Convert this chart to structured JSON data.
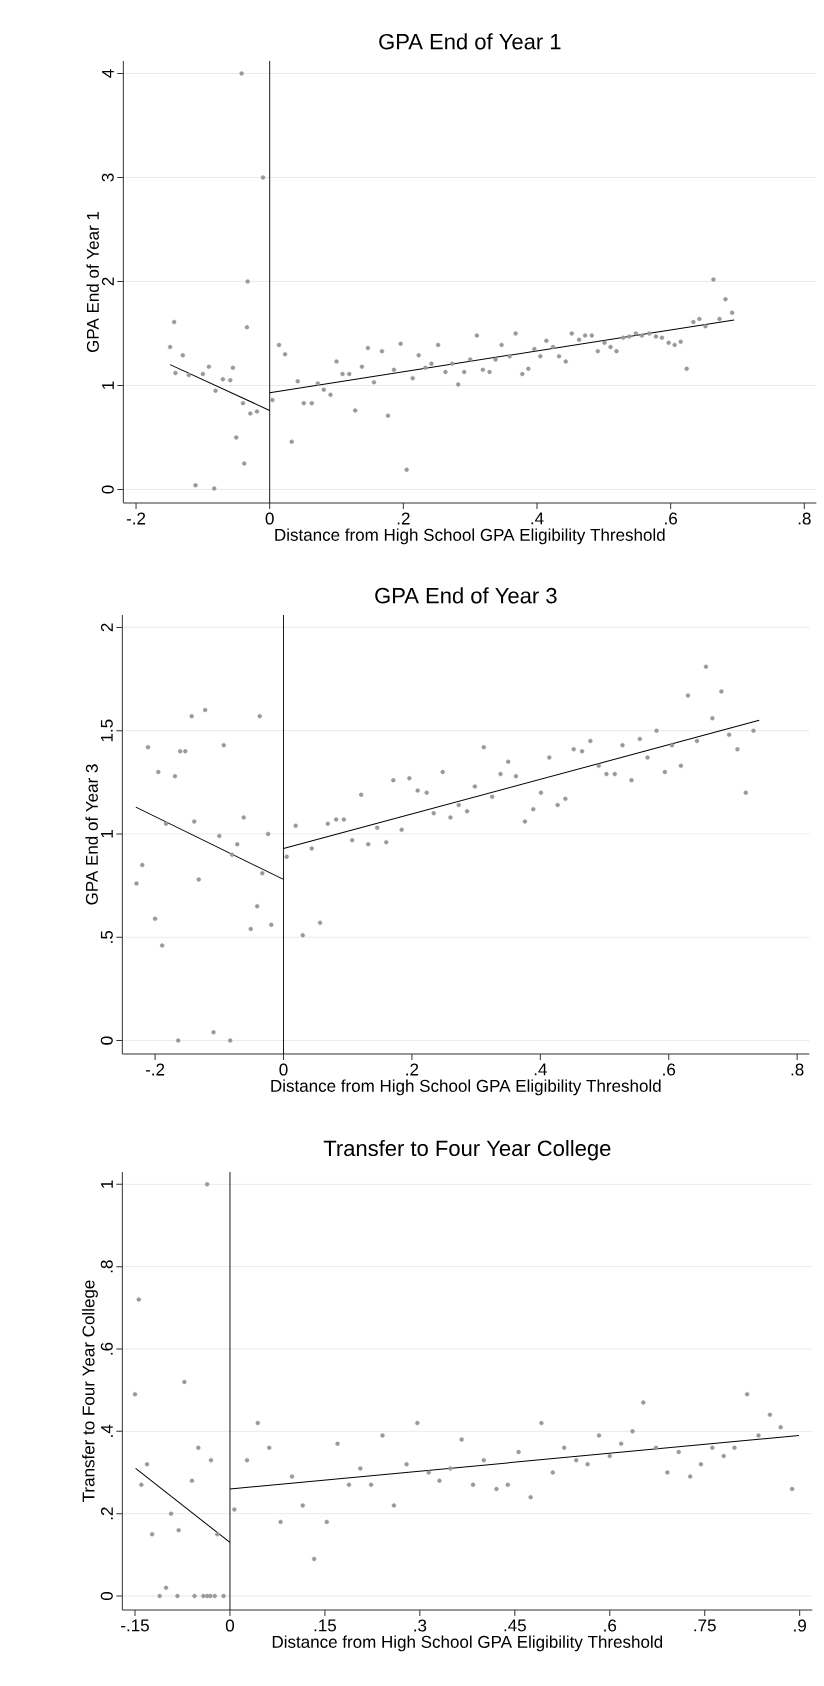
{
  "chart_data": [
    {
      "type": "scatter",
      "title": "GPA End of Year 1",
      "xlabel": "Distance from High School GPA Eligibility Threshold",
      "ylabel": "GPA End of Year 1",
      "xlim": [
        -0.219,
        0.818
      ],
      "ylim": [
        -0.13,
        4.12
      ],
      "xticks": [
        {
          "value": -0.2,
          "label": "-.2"
        },
        0,
        {
          "value": 0.2,
          "label": ".2"
        },
        {
          "value": 0.4,
          "label": ".4"
        },
        {
          "value": 0.6,
          "label": ".6"
        },
        {
          "value": 0.8,
          "label": ".8"
        }
      ],
      "yticks": [
        0,
        1,
        2,
        3,
        4
      ],
      "grid": "y",
      "ref_lines": [
        {
          "axis": "x",
          "value": 0,
          "color": "#000000"
        }
      ],
      "series": [
        {
          "color": "#999999",
          "x": [
            -0.149,
            -0.143,
            -0.141,
            -0.13,
            -0.121,
            -0.111,
            -0.1,
            -0.091,
            -0.083,
            -0.081,
            -0.07,
            -0.059,
            -0.055,
            -0.05,
            -0.042,
            -0.04,
            -0.038,
            -0.034,
            -0.033,
            -0.029,
            -0.019,
            -0.01,
            0.004,
            0.014,
            0.023,
            0.033,
            0.042,
            0.051,
            0.063,
            0.072,
            0.081,
            0.091,
            0.1,
            0.109,
            0.119,
            0.128,
            0.138,
            0.147,
            0.156,
            0.168,
            0.177,
            0.186,
            0.196,
            0.205,
            0.214,
            0.223,
            0.233,
            0.242,
            0.252,
            0.263,
            0.273,
            0.282,
            0.291,
            0.3,
            0.31,
            0.319,
            0.329,
            0.338,
            0.347,
            0.359,
            0.368,
            0.378,
            0.387,
            0.396,
            0.405,
            0.414,
            0.424,
            0.433,
            0.443,
            0.452,
            0.463,
            0.472,
            0.482,
            0.491,
            0.501,
            0.51,
            0.519,
            0.529,
            0.538,
            0.548,
            0.557,
            0.568,
            0.578,
            0.587,
            0.597,
            0.606,
            0.615,
            0.624,
            0.634,
            0.643,
            0.652,
            0.664,
            0.673,
            0.682,
            0.692
          ],
          "values": [
            1.37,
            1.61,
            1.12,
            1.29,
            1.1,
            0.04,
            1.11,
            1.18,
            0.01,
            0.95,
            1.06,
            1.05,
            1.17,
            0.5,
            4.0,
            0.83,
            0.25,
            1.56,
            2.0,
            0.73,
            0.75,
            3.0,
            0.86,
            1.39,
            1.3,
            0.46,
            1.04,
            0.83,
            0.83,
            1.02,
            0.96,
            0.91,
            1.23,
            1.11,
            1.11,
            0.76,
            1.18,
            1.36,
            1.03,
            1.33,
            0.71,
            1.15,
            1.4,
            0.19,
            1.07,
            1.29,
            1.17,
            1.21,
            1.39,
            1.13,
            1.21,
            1.01,
            1.13,
            1.25,
            1.48,
            1.15,
            1.13,
            1.25,
            1.39,
            1.28,
            1.5,
            1.11,
            1.16,
            1.35,
            1.28,
            1.43,
            1.37,
            1.28,
            1.23,
            1.5,
            1.44,
            1.48,
            1.48,
            1.33,
            1.41,
            1.37,
            1.33,
            1.46,
            1.47,
            1.5,
            1.48,
            1.5,
            1.47,
            1.46,
            1.41,
            1.39,
            1.42,
            1.16,
            1.61,
            1.64,
            1.57,
            2.02,
            1.64,
            1.83,
            1.7
          ]
        },
        {
          "type": "line",
          "marker": "none",
          "color": "#000000",
          "x": [
            -0.149,
            0
          ],
          "values": [
            1.2,
            0.76
          ]
        },
        {
          "type": "line",
          "marker": "none",
          "color": "#000000",
          "x": [
            0,
            0.695
          ],
          "values": [
            0.93,
            1.63
          ]
        }
      ]
    },
    {
      "type": "scatter",
      "title": "GPA End of Year 3",
      "xlabel": "Distance from High School GPA Eligibility Threshold",
      "ylabel": "GPA End of Year 3",
      "xlim": [
        -0.251,
        0.819
      ],
      "ylim": [
        -0.065,
        2.06
      ],
      "xticks": [
        {
          "value": -0.2,
          "label": "-.2"
        },
        0,
        {
          "value": 0.2,
          "label": ".2"
        },
        {
          "value": 0.4,
          "label": ".4"
        },
        {
          "value": 0.6,
          "label": ".6"
        },
        {
          "value": 0.8,
          "label": ".8"
        }
      ],
      "yticks": [
        0,
        {
          "value": 0.5,
          "label": ".5"
        },
        1,
        1.5,
        2
      ],
      "grid": "y",
      "ref_lines": [
        {
          "axis": "x",
          "value": 0,
          "color": "#000000"
        }
      ],
      "series": [
        {
          "color": "#999999",
          "x": [
            -0.229,
            -0.22,
            -0.211,
            -0.2,
            -0.195,
            -0.189,
            -0.183,
            -0.169,
            -0.164,
            -0.161,
            -0.153,
            -0.143,
            -0.139,
            -0.132,
            -0.122,
            -0.109,
            -0.1,
            -0.093,
            -0.083,
            -0.08,
            -0.072,
            -0.062,
            -0.051,
            -0.041,
            -0.037,
            -0.033,
            -0.024,
            -0.019,
            0.005,
            0.019,
            0.03,
            0.044,
            0.057,
            0.069,
            0.082,
            0.094,
            0.107,
            0.121,
            0.132,
            0.146,
            0.16,
            0.171,
            0.184,
            0.196,
            0.209,
            0.223,
            0.234,
            0.248,
            0.26,
            0.273,
            0.286,
            0.298,
            0.312,
            0.325,
            0.338,
            0.35,
            0.362,
            0.376,
            0.389,
            0.401,
            0.414,
            0.427,
            0.439,
            0.452,
            0.465,
            0.478,
            0.491,
            0.503,
            0.516,
            0.528,
            0.542,
            0.555,
            0.567,
            0.581,
            0.594,
            0.605,
            0.619,
            0.63,
            0.644,
            0.658,
            0.668,
            0.682,
            0.694,
            0.707,
            0.72,
            0.732
          ],
          "values": [
            0.76,
            0.85,
            1.42,
            0.59,
            1.3,
            0.46,
            1.05,
            1.28,
            0.0,
            1.4,
            1.4,
            1.57,
            1.06,
            0.78,
            1.6,
            0.04,
            0.99,
            1.43,
            0.0,
            0.9,
            0.95,
            1.08,
            0.54,
            0.65,
            1.57,
            0.81,
            1.0,
            0.56,
            0.89,
            1.04,
            0.51,
            0.93,
            0.57,
            1.05,
            1.07,
            1.07,
            0.97,
            1.19,
            0.95,
            1.03,
            0.96,
            1.26,
            1.02,
            1.27,
            1.21,
            1.2,
            1.1,
            1.3,
            1.08,
            1.14,
            1.11,
            1.23,
            1.42,
            1.18,
            1.29,
            1.35,
            1.28,
            1.06,
            1.12,
            1.2,
            1.37,
            1.14,
            1.17,
            1.41,
            1.4,
            1.45,
            1.33,
            1.29,
            1.29,
            1.43,
            1.26,
            1.46,
            1.37,
            1.5,
            1.3,
            1.43,
            1.33,
            1.67,
            1.45,
            1.81,
            1.56,
            1.69,
            1.48,
            1.41,
            1.2,
            1.5
          ]
        },
        {
          "type": "line",
          "marker": "none",
          "color": "#000000",
          "x": [
            -0.23,
            0
          ],
          "values": [
            1.13,
            0.78
          ]
        },
        {
          "type": "line",
          "marker": "none",
          "color": "#000000",
          "x": [
            0,
            0.741
          ],
          "values": [
            0.93,
            1.55
          ]
        }
      ]
    },
    {
      "type": "scatter",
      "title": "Transfer to Four Year College",
      "xlabel": "Distance from High School GPA Eligibility Threshold",
      "ylabel": "Transfer to Four Year College",
      "xlim": [
        -0.17,
        0.92
      ],
      "ylim": [
        -0.034,
        1.03
      ],
      "xticks": [
        {
          "value": -0.15,
          "label": "-.15"
        },
        0,
        {
          "value": 0.15,
          "label": ".15"
        },
        {
          "value": 0.3,
          "label": ".3"
        },
        {
          "value": 0.45,
          "label": ".45"
        },
        {
          "value": 0.6,
          "label": ".6"
        },
        {
          "value": 0.75,
          "label": ".75"
        },
        {
          "value": 0.9,
          "label": ".9"
        }
      ],
      "yticks": [
        0,
        {
          "value": 0.2,
          "label": ".2"
        },
        {
          "value": 0.4,
          "label": ".4"
        },
        {
          "value": 0.6,
          "label": ".6"
        },
        {
          "value": 0.8,
          "label": ".8"
        },
        1
      ],
      "grid": "y",
      "ref_lines": [
        {
          "axis": "x",
          "value": 0,
          "color": "#000000"
        }
      ],
      "series": [
        {
          "color": "#999999",
          "x": [
            -0.15,
            -0.144,
            -0.14,
            -0.131,
            -0.123,
            -0.111,
            -0.101,
            -0.093,
            -0.083,
            -0.081,
            -0.072,
            -0.06,
            -0.056,
            -0.05,
            -0.042,
            -0.036,
            -0.036,
            -0.031,
            -0.03,
            -0.024,
            -0.02,
            -0.01,
            0.007,
            0.027,
            0.044,
            0.062,
            0.08,
            0.098,
            0.115,
            0.133,
            0.153,
            0.17,
            0.188,
            0.206,
            0.223,
            0.241,
            0.259,
            0.279,
            0.296,
            0.314,
            0.331,
            0.348,
            0.366,
            0.384,
            0.401,
            0.421,
            0.439,
            0.456,
            0.475,
            0.492,
            0.51,
            0.528,
            0.547,
            0.565,
            0.583,
            0.6,
            0.618,
            0.636,
            0.653,
            0.673,
            0.691,
            0.709,
            0.727,
            0.744,
            0.762,
            0.78,
            0.797,
            0.817,
            0.835,
            0.853,
            0.87,
            0.888
          ],
          "values": [
            0.49,
            0.72,
            0.27,
            0.32,
            0.15,
            0,
            0.02,
            0.2,
            0,
            0.16,
            0.52,
            0.28,
            0,
            0.36,
            0,
            1.0,
            0,
            0,
            0.33,
            0,
            0.15,
            0,
            0.21,
            0.33,
            0.42,
            0.36,
            0.18,
            0.29,
            0.22,
            0.09,
            0.18,
            0.37,
            0.27,
            0.31,
            0.27,
            0.39,
            0.22,
            0.32,
            0.42,
            0.3,
            0.28,
            0.31,
            0.38,
            0.27,
            0.33,
            0.26,
            0.27,
            0.35,
            0.24,
            0.42,
            0.3,
            0.36,
            0.33,
            0.32,
            0.39,
            0.34,
            0.37,
            0.4,
            0.47,
            0.36,
            0.3,
            0.35,
            0.29,
            0.32,
            0.36,
            0.34,
            0.36,
            0.49,
            0.39,
            0.44,
            0.41,
            0.26
          ]
        },
        {
          "type": "line",
          "marker": "none",
          "color": "#000000",
          "x": [
            -0.149,
            0
          ],
          "values": [
            0.31,
            0.13
          ]
        },
        {
          "type": "line",
          "marker": "none",
          "color": "#000000",
          "x": [
            0,
            0.899
          ],
          "values": [
            0.26,
            0.39
          ]
        }
      ]
    }
  ]
}
